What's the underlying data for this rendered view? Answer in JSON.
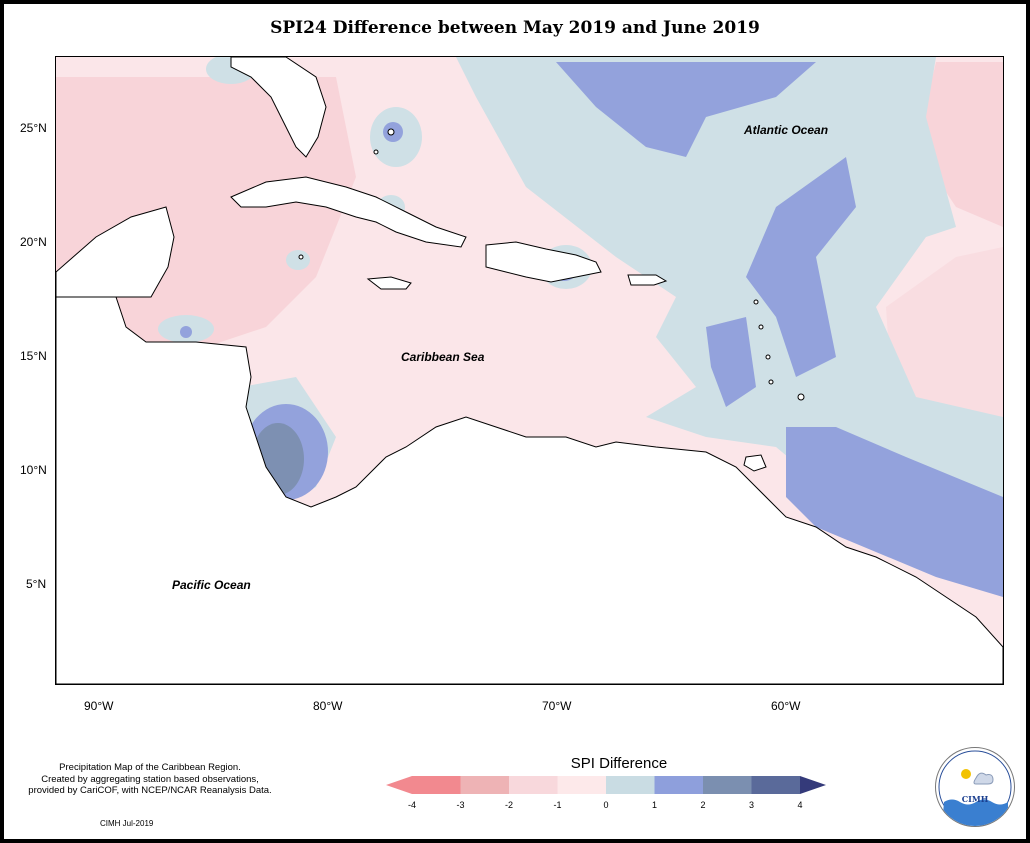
{
  "title": "SPI24 Difference between May 2019 and June 2019",
  "map": {
    "lat_labels": [
      "25°N",
      "20°N",
      "15°N",
      "10°N",
      "5°N"
    ],
    "lon_labels": [
      "90°W",
      "80°W",
      "70°W",
      "60°W"
    ],
    "ocean_labels": {
      "atlantic": "Atlantic Ocean",
      "caribbean": "Caribbean Sea",
      "pacific": "Pacific Ocean"
    }
  },
  "note": {
    "line1": "Precipitation Map of the Caribbean Region.",
    "line2": "Created by aggregating station based observations,",
    "line3": "provided by CariCOF, with NCEP/NCAR Reanalysis Data."
  },
  "credit": "CIMH Jul-2019",
  "legend": {
    "title": "SPI Difference",
    "ticks": [
      "-4",
      "-3",
      "-2",
      "-1",
      "0",
      "1",
      "2",
      "3",
      "4"
    ],
    "colors": [
      "#f2898f",
      "#eeb3b5",
      "#f8d8dc",
      "#fde9ea",
      "#c9dce3",
      "#8e9fdc",
      "#7b8fb0",
      "#5a6a9a",
      "#343a7a"
    ]
  },
  "logo": {
    "text": "CIMH"
  },
  "colors": {
    "land": "#ffffff",
    "coast": "#000000",
    "pink": "#fbe3e6",
    "pink_dark": "#f7d3d8",
    "blue_light": "#cddfe5",
    "blue": "#95a3db",
    "blue_dark": "#7c8faf"
  }
}
